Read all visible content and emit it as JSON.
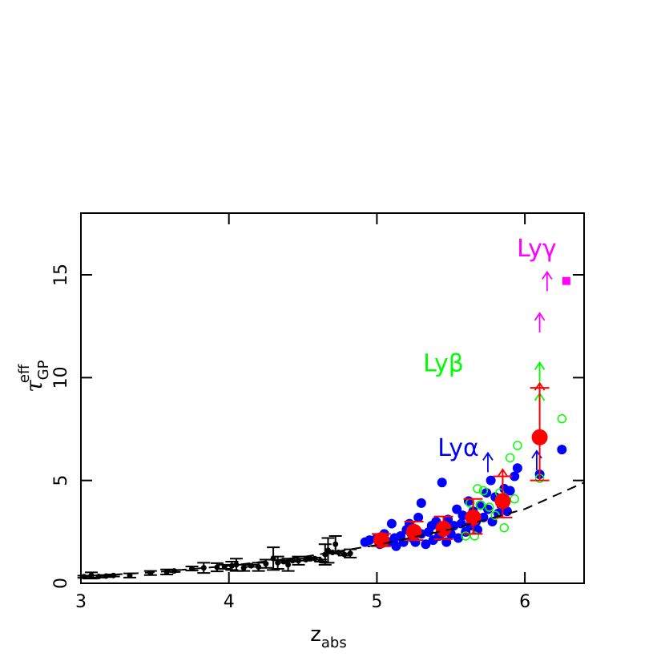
{
  "chart_data": {
    "type": "scatter",
    "x_label": {
      "symbol": "z",
      "sub": "abs"
    },
    "y_label": {
      "symbol": "τ",
      "sub": "GP",
      "sup": "eff"
    },
    "xlim": [
      3,
      6.4
    ],
    "ylim": [
      0,
      18
    ],
    "xticks": [
      3,
      4,
      5,
      6
    ],
    "yticks": [
      0,
      5,
      10,
      15
    ],
    "series": [
      {
        "marker": "dot-errorbar",
        "color": "#000000",
        "x": [
          3.02,
          3.07,
          3.12,
          3.17,
          3.22,
          3.33,
          3.47,
          3.58,
          3.63,
          3.75,
          3.83,
          3.92,
          3.97,
          4.02,
          4.05,
          4.1,
          4.15,
          4.2,
          4.25,
          4.3,
          4.33,
          4.37,
          4.4,
          4.43,
          4.47,
          4.52,
          4.55,
          4.58,
          4.62,
          4.65,
          4.67,
          4.7,
          4.72,
          4.74,
          4.78,
          4.82
        ],
        "values": [
          0.32,
          0.38,
          0.33,
          0.35,
          0.38,
          0.38,
          0.5,
          0.55,
          0.6,
          0.72,
          0.75,
          0.78,
          0.8,
          0.85,
          0.9,
          0.75,
          0.85,
          0.8,
          0.95,
          1.2,
          1.0,
          1.05,
          0.9,
          1.1,
          1.1,
          1.15,
          1.2,
          1.2,
          1.1,
          1.4,
          1.6,
          1.5,
          1.9,
          1.5,
          1.4,
          1.45
        ],
        "errors": [
          0.05,
          0.15,
          0.05,
          0.05,
          0.05,
          0.1,
          0.1,
          0.12,
          0.05,
          0.1,
          0.25,
          0.2,
          0.1,
          0.2,
          0.3,
          0.15,
          0.05,
          0.2,
          0.2,
          0.55,
          0.3,
          0.05,
          0.3,
          0.05,
          0.2,
          0.05,
          0.05,
          0.05,
          0.05,
          0.5,
          0.6,
          0.05,
          0.4,
          0.05,
          0.05,
          0.2
        ]
      },
      {
        "marker": "dot",
        "color": "#0000ff",
        "x": [
          4.92,
          4.95,
          5.0,
          5.02,
          5.05,
          5.08,
          5.1,
          5.12,
          5.13,
          5.16,
          5.18,
          5.2,
          5.22,
          5.24,
          5.26,
          5.28,
          5.3,
          5.3,
          5.33,
          5.35,
          5.37,
          5.38,
          5.4,
          5.42,
          5.44,
          5.45,
          5.47,
          5.48,
          5.5,
          5.52,
          5.54,
          5.55,
          5.57,
          5.58,
          5.6,
          5.62,
          5.63,
          5.65,
          5.67,
          5.68,
          5.7,
          5.72,
          5.74,
          5.75,
          5.77,
          5.78,
          5.8,
          5.82,
          5.84,
          5.86,
          5.88,
          5.9,
          5.93,
          5.95,
          6.1,
          6.25
        ],
        "values": [
          2.0,
          2.1,
          2.2,
          1.9,
          2.4,
          2.0,
          2.9,
          2.2,
          1.8,
          2.3,
          2.0,
          2.6,
          2.9,
          2.2,
          2.0,
          3.2,
          2.4,
          3.9,
          1.9,
          2.5,
          2.8,
          2.1,
          3.0,
          2.3,
          4.9,
          2.6,
          2.0,
          3.1,
          2.4,
          2.8,
          3.6,
          2.2,
          2.9,
          3.3,
          2.5,
          4.0,
          2.8,
          3.5,
          3.0,
          2.6,
          3.8,
          3.2,
          4.4,
          3.6,
          5.0,
          3.0,
          4.2,
          3.4,
          3.8,
          4.6,
          3.5,
          4.5,
          5.2,
          5.6,
          5.3,
          6.5
        ]
      },
      {
        "marker": "open-circle",
        "color": "#00ff00",
        "x": [
          5.6,
          5.63,
          5.66,
          5.68,
          5.7,
          5.72,
          5.76,
          5.8,
          5.83,
          5.86,
          5.9,
          5.93,
          5.95,
          6.1,
          6.25
        ],
        "values": [
          2.3,
          3.9,
          2.3,
          4.6,
          3.8,
          4.5,
          3.7,
          3.3,
          4.4,
          2.7,
          6.1,
          4.1,
          6.7,
          5.1,
          8.0
        ]
      },
      {
        "marker": "arrow",
        "color": "#0000ff",
        "x": [
          5.75,
          6.08
        ],
        "values": [
          5.4,
          5.5
        ]
      },
      {
        "marker": "arrow",
        "color": "#00ff00",
        "x": [
          6.1,
          6.1
        ],
        "values": [
          8.3,
          9.8
        ]
      },
      {
        "marker": "arrow",
        "color": "#ff0000",
        "x": [
          5.85,
          6.1
        ],
        "values": [
          4.6,
          8.8
        ]
      },
      {
        "marker": "arrow",
        "color": "#ff00ff",
        "x": [
          6.1,
          6.15
        ],
        "values": [
          12.2,
          14.2
        ]
      },
      {
        "marker": "square",
        "color": "#ff00ff",
        "x": [
          6.28
        ],
        "values": [
          14.7
        ]
      },
      {
        "marker": "big-dot-errorbar",
        "color": "#ff0000",
        "x": [
          5.03,
          5.25,
          5.45,
          5.65,
          5.85,
          6.1
        ],
        "values": [
          2.1,
          2.5,
          2.65,
          3.2,
          4.0,
          7.1
        ],
        "yerr_low": [
          0.3,
          0.4,
          0.5,
          0.8,
          0.8,
          2.1
        ],
        "yerr_high": [
          0.3,
          0.5,
          0.6,
          0.9,
          1.2,
          2.4
        ]
      },
      {
        "marker": "dashed-line",
        "color": "#000000",
        "x": [
          3,
          3.5,
          4,
          4.5,
          5,
          5.5,
          6,
          6.4
        ],
        "values": [
          0.33,
          0.54,
          0.85,
          1.28,
          1.86,
          2.63,
          3.61,
          4.9
        ]
      }
    ],
    "annotations": [
      {
        "text": "Lyα",
        "x": 5.55,
        "y": 6.2,
        "color": "#0000ff"
      },
      {
        "text": "Lyβ",
        "x": 5.45,
        "y": 10.3,
        "color": "#00ff00"
      },
      {
        "text": "Lyγ",
        "x": 6.08,
        "y": 15.9,
        "color": "#ff00ff"
      }
    ]
  }
}
